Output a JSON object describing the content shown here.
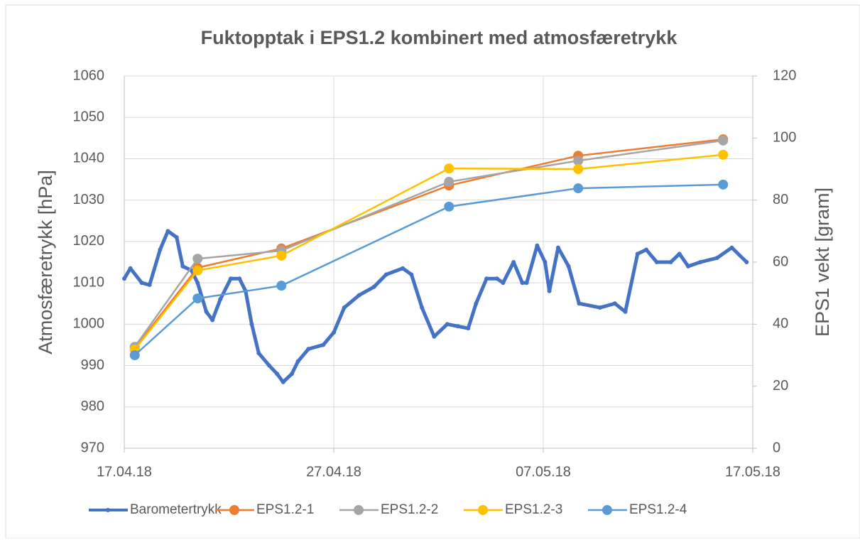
{
  "chart_data": {
    "type": "line",
    "title": "Fuktopptak i EPS1.2 kombinert med atmosfæretrykk",
    "ylabel": "Atmosfæretrykk [hPa]",
    "y2label": "EPS1 vekt [gram]",
    "xlim": [
      "2018-04-17",
      "2018-05-17"
    ],
    "xticks": [
      {
        "value": "2018-04-17",
        "label": "17.04.18"
      },
      {
        "value": "2018-04-27",
        "label": "27.04.18"
      },
      {
        "value": "2018-05-07",
        "label": "07.05.18"
      },
      {
        "value": "2018-05-17",
        "label": "17.05.18"
      }
    ],
    "ylim": [
      970,
      1060
    ],
    "yticks": [
      970,
      980,
      990,
      1000,
      1010,
      1020,
      1030,
      1040,
      1050,
      1060
    ],
    "y2lim": [
      0,
      120
    ],
    "y2ticks": [
      0,
      20,
      40,
      60,
      80,
      100,
      120
    ],
    "grid": true,
    "legend": "bottom",
    "series": [
      {
        "name": "Barometertrykk",
        "color": "#4472c4",
        "axis": "y",
        "x": [
          "2018-04-17T00:00",
          "2018-04-17T07:00",
          "2018-04-17T20:00",
          "2018-04-18T05:00",
          "2018-04-18T17:00",
          "2018-04-19T02:00",
          "2018-04-19T12:00",
          "2018-04-19T19:00",
          "2018-04-20T05:00",
          "2018-04-20T12:00",
          "2018-04-20T22:00",
          "2018-04-21T05:00",
          "2018-04-21T14:00",
          "2018-04-22T02:00",
          "2018-04-22T12:00",
          "2018-04-22T19:00",
          "2018-04-23T02:00",
          "2018-04-23T10:00",
          "2018-04-23T22:00",
          "2018-04-24T07:00",
          "2018-04-24T14:00",
          "2018-04-25T00:00",
          "2018-04-25T07:00",
          "2018-04-25T19:00",
          "2018-04-26T12:00",
          "2018-04-27T00:00",
          "2018-04-27T12:00",
          "2018-04-28T05:00",
          "2018-04-28T22:00",
          "2018-04-29T12:00",
          "2018-04-30T07:00",
          "2018-04-30T17:00",
          "2018-05-01T05:00",
          "2018-05-01T19:00",
          "2018-05-02T10:00",
          "2018-05-02T22:00",
          "2018-05-03T10:00",
          "2018-05-03T19:00",
          "2018-05-04T07:00",
          "2018-05-04T19:00",
          "2018-05-05T02:00",
          "2018-05-05T14:00",
          "2018-05-06T00:00",
          "2018-05-06T05:00",
          "2018-05-06T17:00",
          "2018-05-07T02:00",
          "2018-05-07T07:00",
          "2018-05-07T17:00",
          "2018-05-08T05:00",
          "2018-05-08T17:00",
          "2018-05-09T17:00",
          "2018-05-10T10:00",
          "2018-05-10T22:00",
          "2018-05-11T12:00",
          "2018-05-11T22:00",
          "2018-05-12T10:00",
          "2018-05-13T02:00",
          "2018-05-13T12:00",
          "2018-05-13T22:00",
          "2018-05-14T12:00",
          "2018-05-15T07:00",
          "2018-05-16T00:00",
          "2018-05-16T17:00"
        ],
        "values": [
          1011,
          1013.5,
          1010,
          1009.5,
          1018,
          1022.5,
          1021,
          1014,
          1013,
          1010,
          1003,
          1001,
          1006,
          1011,
          1011,
          1008,
          1000,
          993,
          990,
          988,
          986,
          988,
          991,
          994,
          995,
          998,
          1004,
          1007,
          1009,
          1012,
          1013.5,
          1012,
          1004,
          997,
          1000,
          999.5,
          999,
          1005,
          1011,
          1011,
          1010,
          1015,
          1010,
          1010,
          1019,
          1015,
          1008,
          1018.5,
          1014,
          1005,
          1004,
          1005,
          1003,
          1017,
          1018,
          1015,
          1015,
          1017,
          1014,
          1015,
          1016,
          1018.5,
          1015
        ]
      },
      {
        "name": "EPS1.2-1",
        "color": "#ed7d31",
        "axis": "y2",
        "x": [
          "2018-04-17T12:00",
          "2018-04-20T12:00",
          "2018-04-24T12:00",
          "2018-05-02T12:00",
          "2018-05-08T16:00",
          "2018-05-15T14:00"
        ],
        "values": [
          32.3,
          58.2,
          64.4,
          84.7,
          94.3,
          99.6
        ]
      },
      {
        "name": "EPS1.2-2",
        "color": "#a5a5a5",
        "axis": "y2",
        "x": [
          "2018-04-17T12:00",
          "2018-04-20T12:00",
          "2018-04-24T12:00",
          "2018-05-02T12:00",
          "2018-05-08T16:00",
          "2018-05-15T14:00"
        ],
        "values": [
          32.7,
          61.1,
          63.7,
          85.9,
          92.7,
          99.2
        ]
      },
      {
        "name": "EPS1.2-3",
        "color": "#ffc000",
        "axis": "y2",
        "x": [
          "2018-04-17T12:00",
          "2018-04-20T12:00",
          "2018-04-24T12:00",
          "2018-05-02T12:00",
          "2018-05-08T16:00",
          "2018-05-15T14:00"
        ],
        "values": [
          31.8,
          57.3,
          62.1,
          90.2,
          90.0,
          94.6
        ]
      },
      {
        "name": "EPS1.2-4",
        "color": "#5b9bd5",
        "axis": "y2",
        "x": [
          "2018-04-17T12:00",
          "2018-04-20T12:00",
          "2018-04-24T12:00",
          "2018-05-02T12:00",
          "2018-05-08T16:00",
          "2018-05-15T14:00"
        ],
        "values": [
          30.0,
          48.3,
          52.4,
          77.9,
          83.8,
          85.0
        ]
      }
    ]
  }
}
